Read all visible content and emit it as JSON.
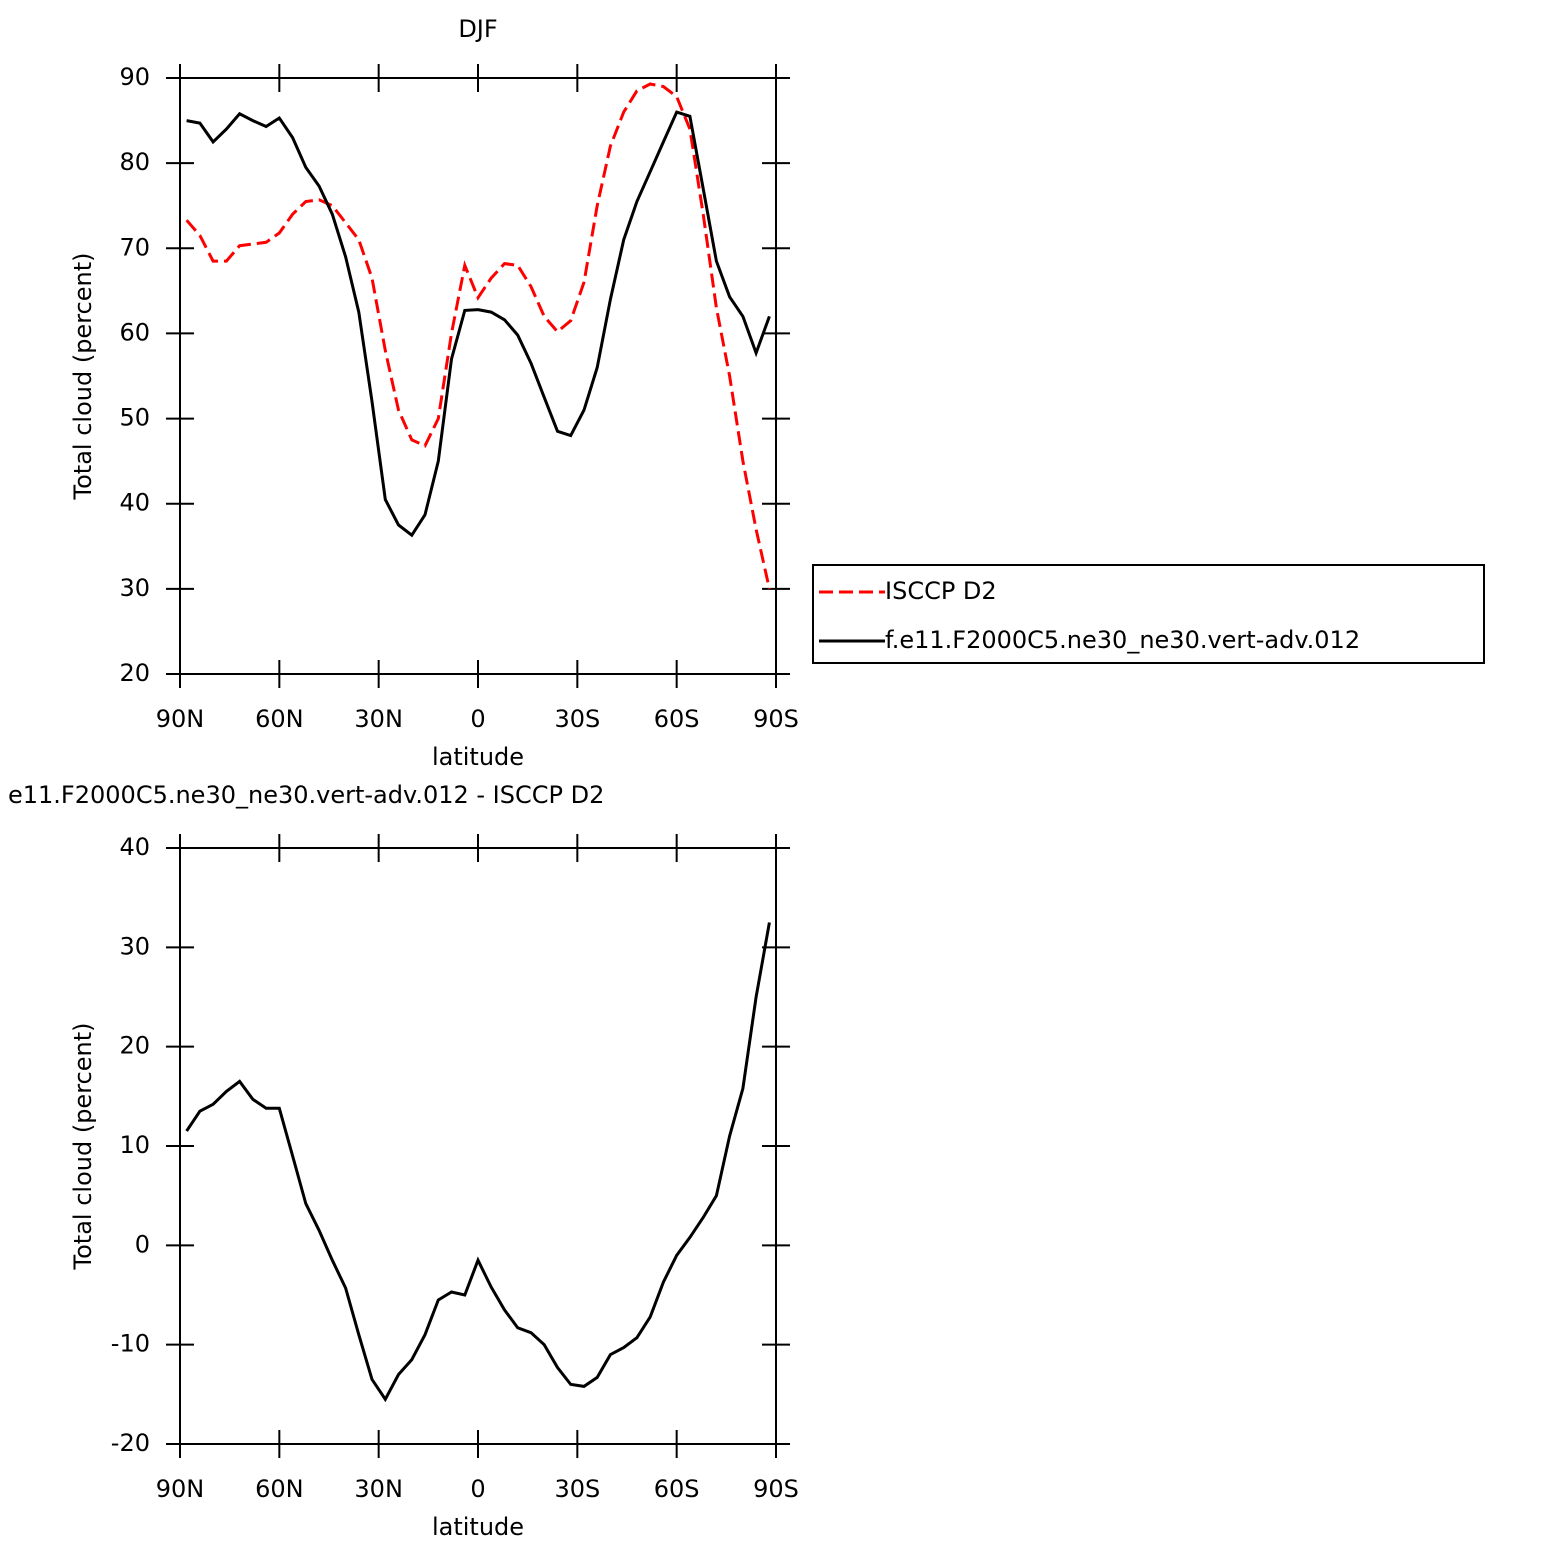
{
  "chart_data": [
    {
      "type": "line",
      "title": "DJF",
      "xlabel": "latitude",
      "ylabel": "Total cloud (percent)",
      "x": [
        88,
        84,
        80,
        76,
        72,
        68,
        64,
        60,
        56,
        52,
        48,
        44,
        40,
        36,
        32,
        28,
        24,
        20,
        16,
        12,
        8,
        4,
        0,
        -4,
        -8,
        -12,
        -16,
        -20,
        -24,
        -28,
        -32,
        -36,
        -40,
        -44,
        -48,
        -52,
        -56,
        -60,
        -64,
        -68,
        -72,
        -76,
        -80,
        -84,
        -88
      ],
      "series": [
        {
          "name": "ISCCP D2",
          "color": "#ff0000",
          "dashed": true,
          "values": [
            73.3,
            71.5,
            68.5,
            68.5,
            70.3,
            70.5,
            70.7,
            71.8,
            74,
            75.5,
            75.7,
            75,
            73,
            71,
            66.5,
            58,
            51,
            47.5,
            46.8,
            50,
            60,
            68,
            64.2,
            66.5,
            68.2,
            68,
            65.5,
            62,
            60.2,
            61.5,
            66,
            75,
            82,
            86,
            88.5,
            89.3,
            89,
            87.8,
            84,
            74,
            63,
            55,
            45,
            37,
            30
          ]
        },
        {
          "name": "f.e11.F2000C5.ne30_ne30.vert-adv.012",
          "color": "#000000",
          "dashed": false,
          "values": [
            85,
            84.7,
            82.5,
            84,
            85.8,
            85,
            84.3,
            85.3,
            83,
            79.5,
            77.3,
            74,
            69,
            62.5,
            52,
            40.5,
            37.5,
            36.3,
            38.7,
            45,
            57,
            62.7,
            62.8,
            62.5,
            61.6,
            59.8,
            56.5,
            52.5,
            48.5,
            48,
            51,
            56,
            64,
            71,
            75.5,
            79,
            82.5,
            86,
            85.5,
            77,
            68.5,
            64.3,
            62,
            57.7,
            62
          ]
        }
      ],
      "xlim": [
        90,
        -90
      ],
      "xticks": [
        {
          "value": 90,
          "label": "90N"
        },
        {
          "value": 60,
          "label": "60N"
        },
        {
          "value": 30,
          "label": "30N"
        },
        0,
        {
          "value": -30,
          "label": "30S"
        },
        {
          "value": -60,
          "label": "60S"
        },
        {
          "value": -90,
          "label": "90S"
        }
      ],
      "ylim": [
        20,
        90
      ],
      "yticks": [
        20,
        30,
        40,
        50,
        60,
        70,
        80,
        90
      ],
      "legend": "right"
    },
    {
      "type": "line",
      "title": "e11.F2000C5.ne30_ne30.vert-adv.012 - ISCCP D2",
      "xlabel": "latitude",
      "ylabel": "Total cloud (percent)",
      "x": [
        88,
        84,
        80,
        76,
        72,
        68,
        64,
        60,
        56,
        52,
        48,
        44,
        40,
        36,
        32,
        28,
        24,
        20,
        16,
        12,
        8,
        4,
        0,
        -4,
        -8,
        -12,
        -16,
        -20,
        -24,
        -28,
        -32,
        -36,
        -40,
        -44,
        -48,
        -52,
        -56,
        -60,
        -64,
        -68,
        -72,
        -76,
        -80,
        -84,
        -88
      ],
      "series": [
        {
          "color": "#000000",
          "dashed": false,
          "values": [
            11.5,
            13.5,
            14.2,
            15.5,
            16.5,
            14.7,
            13.8,
            13.8,
            9,
            4.2,
            1.5,
            -1.5,
            -4.3,
            -9,
            -13.5,
            -15.5,
            -13,
            -11.5,
            -9,
            -5.5,
            -4.7,
            -5,
            -1.5,
            -4.2,
            -6.5,
            -8.3,
            -8.8,
            -10,
            -12.3,
            -14,
            -14.2,
            -13.3,
            -11,
            -10.3,
            -9.3,
            -7.2,
            -3.7,
            -1,
            0.8,
            2.8,
            5,
            11,
            15.8,
            25,
            32.5
          ]
        }
      ],
      "xlim": [
        90,
        -90
      ],
      "xticks": [
        {
          "value": 90,
          "label": "90N"
        },
        {
          "value": 60,
          "label": "60N"
        },
        {
          "value": 30,
          "label": "30N"
        },
        0,
        {
          "value": -30,
          "label": "30S"
        },
        {
          "value": -60,
          "label": "60S"
        },
        {
          "value": -90,
          "label": "90S"
        }
      ],
      "ylim": [
        -20,
        40
      ],
      "yticks": [
        -20,
        -10,
        0,
        10,
        20,
        30,
        40
      ]
    }
  ]
}
